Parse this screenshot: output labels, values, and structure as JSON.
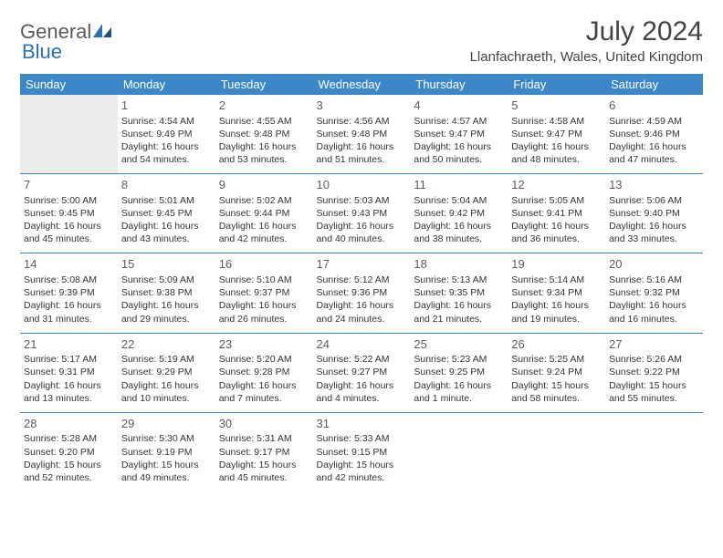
{
  "logo": {
    "part1": "General",
    "part2": "Blue"
  },
  "title": "July 2024",
  "location": "Llanfachraeth, Wales, United Kingdom",
  "colors": {
    "header_bg": "#3c87c7",
    "header_fg": "#ffffff",
    "rule": "#3c87c7",
    "lead_bg": "#ececec",
    "logo_gray": "#5a5a5a",
    "logo_blue": "#2a71b8"
  },
  "day_headers": [
    "Sunday",
    "Monday",
    "Tuesday",
    "Wednesday",
    "Thursday",
    "Friday",
    "Saturday"
  ],
  "weeks": [
    [
      {
        "day": "",
        "lines": [],
        "lead": true
      },
      {
        "day": "1",
        "lines": [
          "Sunrise: 4:54 AM",
          "Sunset: 9:49 PM",
          "Daylight: 16 hours and 54 minutes."
        ]
      },
      {
        "day": "2",
        "lines": [
          "Sunrise: 4:55 AM",
          "Sunset: 9:48 PM",
          "Daylight: 16 hours and 53 minutes."
        ]
      },
      {
        "day": "3",
        "lines": [
          "Sunrise: 4:56 AM",
          "Sunset: 9:48 PM",
          "Daylight: 16 hours and 51 minutes."
        ]
      },
      {
        "day": "4",
        "lines": [
          "Sunrise: 4:57 AM",
          "Sunset: 9:47 PM",
          "Daylight: 16 hours and 50 minutes."
        ]
      },
      {
        "day": "5",
        "lines": [
          "Sunrise: 4:58 AM",
          "Sunset: 9:47 PM",
          "Daylight: 16 hours and 48 minutes."
        ]
      },
      {
        "day": "6",
        "lines": [
          "Sunrise: 4:59 AM",
          "Sunset: 9:46 PM",
          "Daylight: 16 hours and 47 minutes."
        ]
      }
    ],
    [
      {
        "day": "7",
        "lines": [
          "Sunrise: 5:00 AM",
          "Sunset: 9:45 PM",
          "Daylight: 16 hours and 45 minutes."
        ]
      },
      {
        "day": "8",
        "lines": [
          "Sunrise: 5:01 AM",
          "Sunset: 9:45 PM",
          "Daylight: 16 hours and 43 minutes."
        ]
      },
      {
        "day": "9",
        "lines": [
          "Sunrise: 5:02 AM",
          "Sunset: 9:44 PM",
          "Daylight: 16 hours and 42 minutes."
        ]
      },
      {
        "day": "10",
        "lines": [
          "Sunrise: 5:03 AM",
          "Sunset: 9:43 PM",
          "Daylight: 16 hours and 40 minutes."
        ]
      },
      {
        "day": "11",
        "lines": [
          "Sunrise: 5:04 AM",
          "Sunset: 9:42 PM",
          "Daylight: 16 hours and 38 minutes."
        ]
      },
      {
        "day": "12",
        "lines": [
          "Sunrise: 5:05 AM",
          "Sunset: 9:41 PM",
          "Daylight: 16 hours and 36 minutes."
        ]
      },
      {
        "day": "13",
        "lines": [
          "Sunrise: 5:06 AM",
          "Sunset: 9:40 PM",
          "Daylight: 16 hours and 33 minutes."
        ]
      }
    ],
    [
      {
        "day": "14",
        "lines": [
          "Sunrise: 5:08 AM",
          "Sunset: 9:39 PM",
          "Daylight: 16 hours and 31 minutes."
        ]
      },
      {
        "day": "15",
        "lines": [
          "Sunrise: 5:09 AM",
          "Sunset: 9:38 PM",
          "Daylight: 16 hours and 29 minutes."
        ]
      },
      {
        "day": "16",
        "lines": [
          "Sunrise: 5:10 AM",
          "Sunset: 9:37 PM",
          "Daylight: 16 hours and 26 minutes."
        ]
      },
      {
        "day": "17",
        "lines": [
          "Sunrise: 5:12 AM",
          "Sunset: 9:36 PM",
          "Daylight: 16 hours and 24 minutes."
        ]
      },
      {
        "day": "18",
        "lines": [
          "Sunrise: 5:13 AM",
          "Sunset: 9:35 PM",
          "Daylight: 16 hours and 21 minutes."
        ]
      },
      {
        "day": "19",
        "lines": [
          "Sunrise: 5:14 AM",
          "Sunset: 9:34 PM",
          "Daylight: 16 hours and 19 minutes."
        ]
      },
      {
        "day": "20",
        "lines": [
          "Sunrise: 5:16 AM",
          "Sunset: 9:32 PM",
          "Daylight: 16 hours and 16 minutes."
        ]
      }
    ],
    [
      {
        "day": "21",
        "lines": [
          "Sunrise: 5:17 AM",
          "Sunset: 9:31 PM",
          "Daylight: 16 hours and 13 minutes."
        ]
      },
      {
        "day": "22",
        "lines": [
          "Sunrise: 5:19 AM",
          "Sunset: 9:29 PM",
          "Daylight: 16 hours and 10 minutes."
        ]
      },
      {
        "day": "23",
        "lines": [
          "Sunrise: 5:20 AM",
          "Sunset: 9:28 PM",
          "Daylight: 16 hours and 7 minutes."
        ]
      },
      {
        "day": "24",
        "lines": [
          "Sunrise: 5:22 AM",
          "Sunset: 9:27 PM",
          "Daylight: 16 hours and 4 minutes."
        ]
      },
      {
        "day": "25",
        "lines": [
          "Sunrise: 5:23 AM",
          "Sunset: 9:25 PM",
          "Daylight: 16 hours and 1 minute."
        ]
      },
      {
        "day": "26",
        "lines": [
          "Sunrise: 5:25 AM",
          "Sunset: 9:24 PM",
          "Daylight: 15 hours and 58 minutes."
        ]
      },
      {
        "day": "27",
        "lines": [
          "Sunrise: 5:26 AM",
          "Sunset: 9:22 PM",
          "Daylight: 15 hours and 55 minutes."
        ]
      }
    ],
    [
      {
        "day": "28",
        "lines": [
          "Sunrise: 5:28 AM",
          "Sunset: 9:20 PM",
          "Daylight: 15 hours and 52 minutes."
        ]
      },
      {
        "day": "29",
        "lines": [
          "Sunrise: 5:30 AM",
          "Sunset: 9:19 PM",
          "Daylight: 15 hours and 49 minutes."
        ]
      },
      {
        "day": "30",
        "lines": [
          "Sunrise: 5:31 AM",
          "Sunset: 9:17 PM",
          "Daylight: 15 hours and 45 minutes."
        ]
      },
      {
        "day": "31",
        "lines": [
          "Sunrise: 5:33 AM",
          "Sunset: 9:15 PM",
          "Daylight: 15 hours and 42 minutes."
        ]
      },
      {
        "day": "",
        "lines": []
      },
      {
        "day": "",
        "lines": []
      },
      {
        "day": "",
        "lines": []
      }
    ]
  ]
}
